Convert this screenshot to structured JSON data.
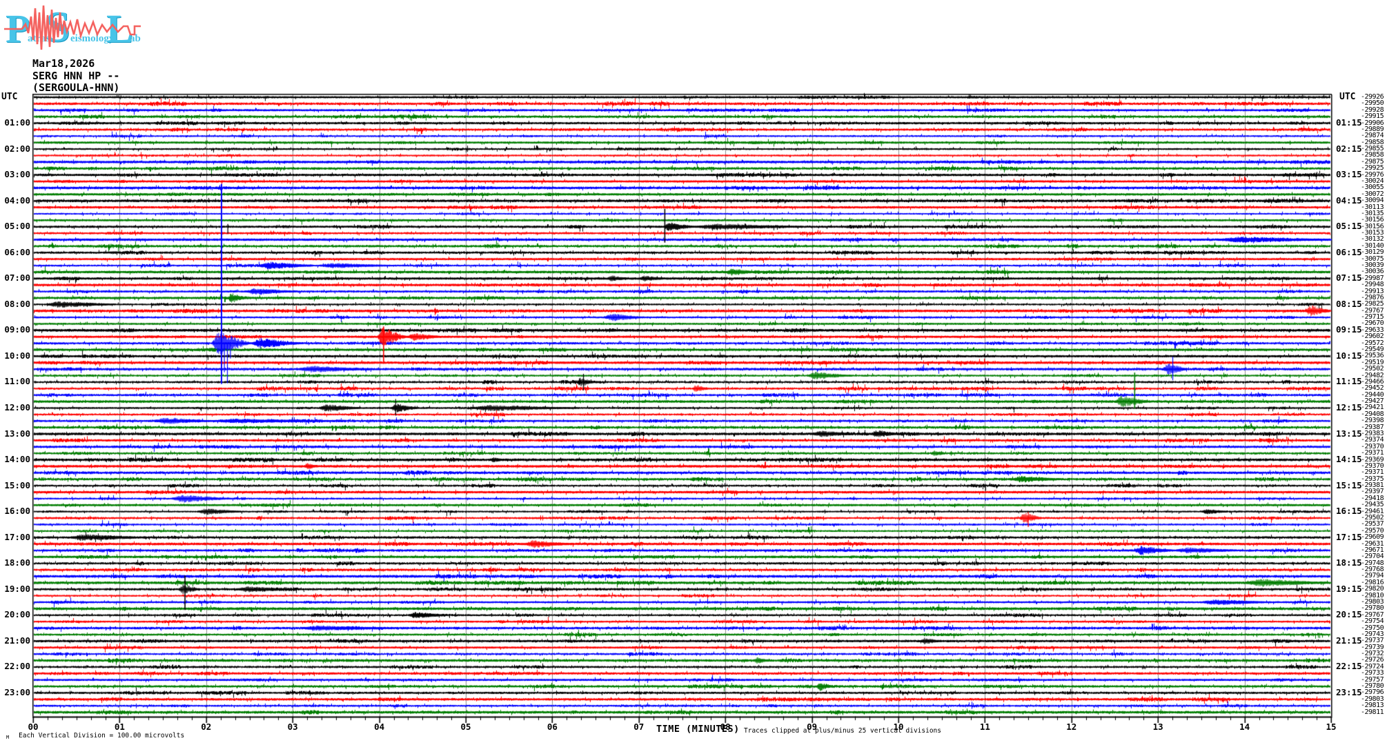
{
  "logo": {
    "letters": [
      {
        "big": "P",
        "small": "atras"
      },
      {
        "big": "S",
        "small": "eismology"
      },
      {
        "big": "L",
        "small": "ab"
      }
    ],
    "letter_color": "#48c4e8",
    "trace_color": "#f4625f"
  },
  "header": {
    "date": "Mar18,2026",
    "channel": "SERG HNN HP --",
    "station": "(SERGOULA-HNN)"
  },
  "axis": {
    "utc_left": "UTC",
    "utc_right": "UTC",
    "x_title": "TIME (MINUTES)",
    "clip_note": "Traces clipped at plus/minus 25 vertical divisions",
    "scale_note": "Each Vertical Division =  100.00 microvolts",
    "scale_mark": "M",
    "x_labels": [
      "00",
      "01",
      "02",
      "03",
      "04",
      "05",
      "06",
      "07",
      "08",
      "09",
      "10",
      "11",
      "12",
      "13",
      "14",
      "15"
    ]
  },
  "left_time_labels": [
    "01:00",
    "02:00",
    "03:00",
    "04:00",
    "05:00",
    "06:00",
    "07:00",
    "08:00",
    "09:00",
    "10:00",
    "11:00",
    "12:00",
    "13:00",
    "14:00",
    "15:00",
    "16:00",
    "17:00",
    "18:00",
    "19:00",
    "20:00",
    "21:00",
    "22:00",
    "23:00"
  ],
  "right_time_labels": [
    "01:15",
    "02:15",
    "03:15",
    "04:15",
    "05:15",
    "06:15",
    "07:15",
    "08:15",
    "09:15",
    "10:15",
    "11:15",
    "12:15",
    "13:15",
    "14:15",
    "15:15",
    "16:15",
    "17:15",
    "18:15",
    "19:15",
    "20:15",
    "21:15",
    "22:15",
    "23:15"
  ],
  "chart_data": {
    "type": "seismogram-helicorder",
    "title": "SERG HNN HP -- (SERGOULA-HNN) Mar18,2026",
    "start_time_utc": "00:00",
    "minutes_per_line": 15,
    "lines": 96,
    "x_range_minutes": [
      0,
      15
    ],
    "xlabel": "TIME (MINUTES)",
    "grid": true,
    "grid_color": "#8c8c8c",
    "trace_color_cycle": [
      "#000000",
      "#ff0000",
      "#0000ff",
      "#007d00"
    ],
    "right_edge_counts": [
      -29926,
      -29950,
      -29928,
      -29915,
      -29906,
      -29889,
      -29874,
      -29858,
      -29855,
      -29858,
      -29875,
      -29925,
      -29976,
      -30024,
      -30055,
      -30072,
      -30094,
      -30113,
      -30135,
      -30156,
      -30156,
      -30153,
      -30132,
      -30140,
      -30129,
      -30075,
      -30039,
      -30036,
      -29987,
      -29948,
      -29913,
      -29876,
      -29825,
      -29767,
      -29715,
      -29670,
      -29633,
      -29602,
      -29572,
      -29549,
      -29536,
      -29519,
      -29502,
      -29482,
      -29466,
      -29452,
      -29440,
      -29427,
      -29421,
      -29408,
      -29398,
      -29387,
      -29383,
      -29374,
      -29370,
      -29371,
      -29369,
      -29370,
      -29371,
      -29375,
      -29381,
      -29397,
      -29418,
      -29435,
      -29461,
      -29502,
      -29537,
      -29570,
      -29609,
      -29631,
      -29671,
      -29704,
      -29748,
      -29768,
      -29794,
      -29816,
      -29820,
      -29810,
      -29803,
      -29780,
      -29767,
      -29754,
      -29750,
      -29743,
      -29737,
      -29739,
      -29732,
      -29726,
      -29724,
      -29733,
      -29757,
      -29780,
      -29796,
      -29803,
      -29813,
      -29811
    ],
    "events": [
      {
        "line": 20,
        "kind": "spike",
        "m": 2.25,
        "up": 4,
        "down": 10
      },
      {
        "line": 20,
        "kind": "spike",
        "m": 7.3,
        "up": 26,
        "down": 23,
        "w": 1.6
      },
      {
        "line": 20,
        "kind": "burst",
        "m0": 7.28,
        "m1": 7.65,
        "amp": 6
      },
      {
        "line": 20,
        "kind": "burst",
        "m0": 7.65,
        "m1": 8.9,
        "amp": 3.6
      },
      {
        "line": 22,
        "kind": "burst",
        "m0": 13.7,
        "m1": 15.0,
        "amp": 3.8
      },
      {
        "line": 26,
        "kind": "burst",
        "m0": 2.6,
        "m1": 3.25,
        "amp": 5
      },
      {
        "line": 26,
        "kind": "burst",
        "m0": 3.3,
        "m1": 4.15,
        "amp": 3
      },
      {
        "line": 27,
        "kind": "burst",
        "m0": 8.0,
        "m1": 8.35,
        "amp": 5
      },
      {
        "line": 28,
        "kind": "burst",
        "m0": 6.63,
        "m1": 6.88,
        "amp": 4
      },
      {
        "line": 28,
        "kind": "burst",
        "m0": 7.0,
        "m1": 7.3,
        "amp": 3.5
      },
      {
        "line": 30,
        "kind": "burst",
        "m0": 2.45,
        "m1": 3.05,
        "amp": 4
      },
      {
        "line": 31,
        "kind": "burst",
        "m0": 2.25,
        "m1": 2.45,
        "amp": 7
      },
      {
        "line": 32,
        "kind": "burst",
        "m0": 0.15,
        "m1": 0.95,
        "amp": 4
      },
      {
        "line": 33,
        "kind": "burst",
        "m0": 14.7,
        "m1": 15.0,
        "amp": 8
      },
      {
        "line": 34,
        "kind": "burst",
        "m0": 6.6,
        "m1": 7.05,
        "amp": 5
      },
      {
        "line": 37,
        "kind": "spike",
        "m": 4.05,
        "up": 15,
        "down": 39,
        "w": 1.6
      },
      {
        "line": 37,
        "kind": "burst",
        "m0": 3.97,
        "m1": 4.32,
        "amp": 14
      },
      {
        "line": 37,
        "kind": "burst",
        "m0": 4.32,
        "m1": 4.72,
        "amp": 5
      },
      {
        "line": 38,
        "kind": "spike",
        "m": 2.177,
        "up": 231,
        "down": 59,
        "w": 2
      },
      {
        "line": 38,
        "kind": "spike",
        "m": 2.21,
        "up": 0,
        "down": 42
      },
      {
        "line": 38,
        "kind": "spike",
        "m": 2.245,
        "up": 0,
        "down": 58
      },
      {
        "line": 38,
        "kind": "spike",
        "m": 2.28,
        "up": 0,
        "down": 22
      },
      {
        "line": 38,
        "kind": "burst",
        "m0": 2.06,
        "m1": 2.52,
        "amp": 17
      },
      {
        "line": 38,
        "kind": "burst",
        "m0": 2.52,
        "m1": 3.12,
        "amp": 7
      },
      {
        "line": 42,
        "kind": "burst",
        "m0": 3.05,
        "m1": 3.95,
        "amp": 4
      },
      {
        "line": 42,
        "kind": "spike",
        "m": 13.17,
        "up": 18,
        "down": 16
      },
      {
        "line": 42,
        "kind": "burst",
        "m0": 13.05,
        "m1": 13.35,
        "amp": 8
      },
      {
        "line": 43,
        "kind": "burst",
        "m0": 8.95,
        "m1": 9.45,
        "amp": 5
      },
      {
        "line": 44,
        "kind": "spike",
        "m": 6.36,
        "up": 12,
        "down": 12
      },
      {
        "line": 44,
        "kind": "burst",
        "m0": 6.28,
        "m1": 6.5,
        "amp": 6
      },
      {
        "line": 45,
        "kind": "burst",
        "m0": 7.62,
        "m1": 7.8,
        "amp": 5
      },
      {
        "line": 47,
        "kind": "spike",
        "m": 12.73,
        "up": 42,
        "down": 10,
        "w": 1.6
      },
      {
        "line": 47,
        "kind": "burst",
        "m0": 12.5,
        "m1": 12.92,
        "amp": 8
      },
      {
        "line": 48,
        "kind": "burst",
        "m0": 3.3,
        "m1": 3.78,
        "amp": 5
      },
      {
        "line": 48,
        "kind": "spike",
        "m": 4.19,
        "up": 13,
        "down": 11
      },
      {
        "line": 48,
        "kind": "burst",
        "m0": 4.13,
        "m1": 4.45,
        "amp": 6
      },
      {
        "line": 48,
        "kind": "burst",
        "m0": 5.05,
        "m1": 6.3,
        "amp": 3.5
      },
      {
        "line": 50,
        "kind": "burst",
        "m0": 1.4,
        "m1": 2.05,
        "amp": 4
      },
      {
        "line": 50,
        "kind": "burst",
        "m0": 2.05,
        "m1": 3.6,
        "amp": 2.5
      },
      {
        "line": 52,
        "kind": "burst",
        "m0": 9.0,
        "m1": 9.52,
        "amp": 4
      },
      {
        "line": 52,
        "kind": "burst",
        "m0": 9.68,
        "m1": 10.02,
        "amp": 5
      },
      {
        "line": 55,
        "kind": "burst",
        "m0": 10.38,
        "m1": 10.54,
        "amp": 4
      },
      {
        "line": 56,
        "kind": "burst",
        "m0": 5.28,
        "m1": 5.44,
        "amp": 3
      },
      {
        "line": 57,
        "kind": "burst",
        "m0": 3.14,
        "m1": 3.28,
        "amp": 4
      },
      {
        "line": 59,
        "kind": "burst",
        "m0": 11.3,
        "m1": 11.9,
        "amp": 4
      },
      {
        "line": 62,
        "kind": "burst",
        "m0": 1.6,
        "m1": 2.28,
        "amp": 5
      },
      {
        "line": 64,
        "kind": "burst",
        "m0": 1.9,
        "m1": 2.4,
        "amp": 4
      },
      {
        "line": 64,
        "kind": "burst",
        "m0": 13.5,
        "m1": 13.8,
        "amp": 3
      },
      {
        "line": 65,
        "kind": "spike",
        "m": 11.5,
        "up": 9,
        "down": 13
      },
      {
        "line": 65,
        "kind": "burst",
        "m0": 11.4,
        "m1": 11.66,
        "amp": 8
      },
      {
        "line": 68,
        "kind": "burst",
        "m0": 0.42,
        "m1": 1.28,
        "amp": 4
      },
      {
        "line": 69,
        "kind": "burst",
        "m0": 5.68,
        "m1": 6.22,
        "amp": 5
      },
      {
        "line": 70,
        "kind": "burst",
        "m0": 12.72,
        "m1": 13.18,
        "amp": 6
      },
      {
        "line": 70,
        "kind": "burst",
        "m0": 13.2,
        "m1": 13.95,
        "amp": 3.5
      },
      {
        "line": 75,
        "kind": "burst",
        "m0": 14.0,
        "m1": 15.0,
        "amp": 5
      },
      {
        "line": 76,
        "kind": "spike",
        "m": 1.755,
        "up": 20,
        "down": 30,
        "w": 1.6
      },
      {
        "line": 76,
        "kind": "burst",
        "m0": 1.68,
        "m1": 1.92,
        "amp": 7
      },
      {
        "line": 76,
        "kind": "burst",
        "m0": 2.35,
        "m1": 3.0,
        "amp": 3.5
      },
      {
        "line": 78,
        "kind": "burst",
        "m0": 13.5,
        "m1": 14.3,
        "amp": 3.5
      },
      {
        "line": 80,
        "kind": "burst",
        "m0": 4.33,
        "m1": 4.78,
        "amp": 4
      },
      {
        "line": 82,
        "kind": "burst",
        "m0": 3.1,
        "m1": 4.15,
        "amp": 3
      },
      {
        "line": 84,
        "kind": "burst",
        "m0": 10.25,
        "m1": 10.5,
        "amp": 4
      },
      {
        "line": 87,
        "kind": "burst",
        "m0": 8.33,
        "m1": 8.5,
        "amp": 4
      },
      {
        "line": 91,
        "kind": "burst",
        "m0": 9.05,
        "m1": 9.25,
        "amp": 6
      }
    ]
  }
}
